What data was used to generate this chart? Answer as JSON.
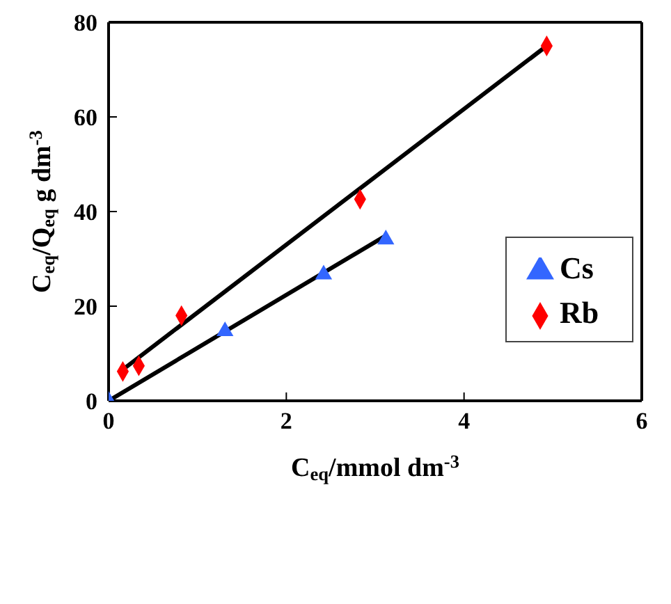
{
  "chart_data": {
    "type": "scatter",
    "xlabel": "C$_{eq}$/mmol dm$^{-3}$",
    "ylabel": "C$_{eq}$/Q$_{eq}$ g dm$^{-3}$",
    "xlim": [
      0,
      6
    ],
    "xticks": [
      0,
      2,
      4,
      6
    ],
    "ylim": [
      0,
      80
    ],
    "yticks": [
      0,
      20,
      40,
      60,
      80
    ],
    "grid": false,
    "legend": "right",
    "series": [
      {
        "name": "Cs",
        "marker": "triangle",
        "color": "#3366ff",
        "x": [
          0,
          1.31,
          2.42,
          3.12
        ],
        "values": [
          0,
          14.7,
          26.7,
          34.1
        ]
      },
      {
        "name": "Rb",
        "marker": "diamond",
        "color": "#ff0000",
        "x": [
          0.16,
          0.34,
          0.82,
          2.83,
          4.93
        ],
        "values": [
          6.2,
          7.4,
          18.0,
          42.6,
          75.0
        ]
      },
      {
        "type": "line",
        "marker": "none",
        "color": "#000000",
        "x": [
          0,
          3.12
        ],
        "values": [
          0,
          34.9
        ]
      },
      {
        "type": "line",
        "marker": "none",
        "color": "#000000",
        "x": [
          0.16,
          4.93
        ],
        "values": [
          6.6,
          75.0
        ]
      }
    ]
  }
}
